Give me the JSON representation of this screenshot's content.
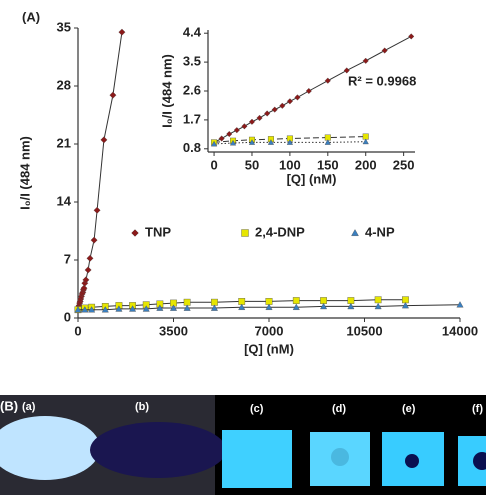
{
  "panels": {
    "a": "(A)",
    "b": "(B)"
  },
  "photos": [
    "(a)",
    "(b)",
    "(c)",
    "(d)",
    "(e)",
    "(f)"
  ],
  "chart_data": [
    {
      "type": "scatter",
      "xlabel": "[Q] (nM)",
      "ylabel": "I₀/I (484 nm)",
      "xlim": [
        0,
        14000
      ],
      "xticks": [
        0,
        3500,
        7000,
        10500,
        14000
      ],
      "ylim": [
        0,
        35
      ],
      "yticks": [
        0,
        7,
        14,
        21,
        28,
        35
      ],
      "legend": "center",
      "series": [
        {
          "name": "TNP",
          "color": "#8b1a1a",
          "marker": "diamond",
          "line_style": "solid",
          "x": [
            0,
            20,
            40,
            60,
            80,
            100,
            125,
            150,
            175,
            200,
            220,
            250,
            290,
            370,
            440,
            590,
            700,
            950,
            1280,
            1610
          ],
          "values": [
            1.0,
            1.3,
            1.5,
            1.8,
            2.0,
            2.3,
            2.6,
            2.9,
            3.1,
            3.4,
            3.6,
            4.2,
            4.6,
            5.8,
            7.2,
            9.4,
            13,
            21.5,
            26.9,
            34.5
          ]
        },
        {
          "name": "2,4-DNP",
          "color": "#e6e600",
          "marker": "square",
          "line_style": "solid",
          "x": [
            0,
            250,
            500,
            1000,
            1500,
            2000,
            2500,
            3000,
            3500,
            4000,
            5000,
            6000,
            7000,
            8000,
            9000,
            10000,
            11000,
            12000
          ],
          "values": [
            1.0,
            1.2,
            1.3,
            1.4,
            1.5,
            1.5,
            1.6,
            1.7,
            1.8,
            1.9,
            1.9,
            2.0,
            2.0,
            2.1,
            2.1,
            2.1,
            2.2,
            2.2
          ]
        },
        {
          "name": "4-NP",
          "color": "#3a7fbf",
          "marker": "triangle",
          "line_style": "solid",
          "x": [
            0,
            250,
            500,
            1000,
            1500,
            2000,
            2500,
            3000,
            3500,
            4000,
            5000,
            6000,
            7000,
            8000,
            9000,
            10000,
            11000,
            12000,
            14000
          ],
          "values": [
            1.0,
            1.0,
            1.0,
            1.0,
            1.1,
            1.1,
            1.1,
            1.2,
            1.2,
            1.2,
            1.2,
            1.3,
            1.3,
            1.3,
            1.4,
            1.4,
            1.4,
            1.5,
            1.6
          ]
        }
      ]
    },
    {
      "type": "scatter",
      "xlabel": "[Q] (nM)",
      "ylabel": "I₀/I (484 nm)",
      "annotation": "R² = 0.9968",
      "xlim": [
        -8,
        265
      ],
      "xticks": [
        0,
        50,
        100,
        150,
        200,
        250
      ],
      "ylim": [
        0.7,
        4.5
      ],
      "yticks": [
        0.8,
        1.7,
        2.6,
        3.5,
        4.4
      ],
      "series": [
        {
          "color": "#8b1a1a",
          "marker": "diamond",
          "line_style": "solid",
          "x": [
            0,
            10,
            20,
            30,
            40,
            50,
            60,
            70,
            80,
            90,
            100,
            110,
            125,
            150,
            175,
            200,
            225,
            260
          ],
          "values": [
            1.0,
            1.12,
            1.26,
            1.38,
            1.5,
            1.64,
            1.76,
            1.9,
            2.02,
            2.14,
            2.28,
            2.4,
            2.6,
            2.92,
            3.24,
            3.54,
            3.86,
            4.3
          ]
        },
        {
          "color": "#e6e600",
          "marker": "square",
          "line_style": "dashed",
          "x": [
            0,
            25,
            50,
            75,
            100,
            150,
            200
          ],
          "values": [
            1.0,
            1.05,
            1.08,
            1.1,
            1.12,
            1.15,
            1.18
          ]
        },
        {
          "color": "#3a7fbf",
          "marker": "triangle",
          "line_style": "dotted",
          "x": [
            0,
            25,
            50,
            75,
            100,
            150,
            200
          ],
          "values": [
            0.95,
            0.98,
            1.0,
            1.0,
            1.0,
            1.0,
            1.02
          ]
        }
      ]
    }
  ]
}
